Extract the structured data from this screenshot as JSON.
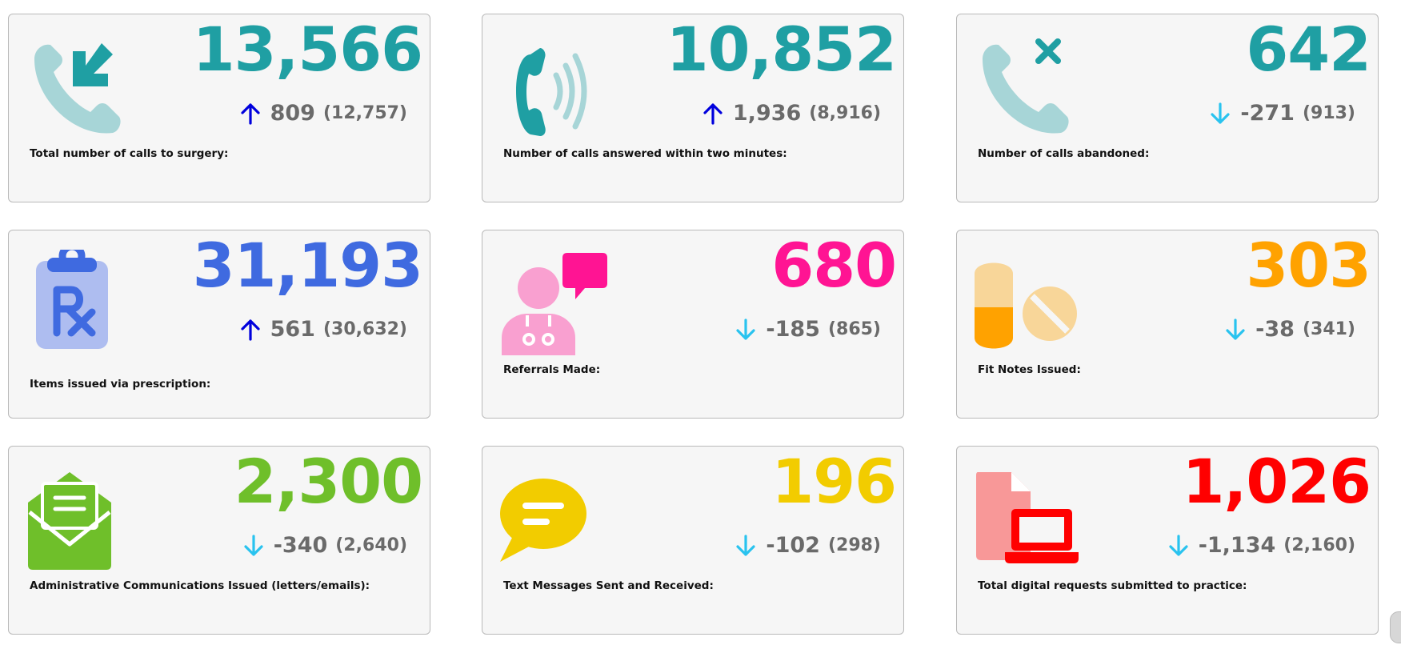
{
  "colors": {
    "teal": "#1f9fa3",
    "teal_light": "#a7d5d7",
    "blue": "#3f6ae0",
    "blue_light": "#aebdf0",
    "pink": "#ff1493",
    "pink_light": "#f9a0d0",
    "orange": "#ffa200",
    "orange_light": "#f8d699",
    "green": "#6fbf2a",
    "yellow": "#f2cc00",
    "red": "#ff0000",
    "red_light": "#f89898",
    "arrow_up": "#0000dd",
    "arrow_down": "#29c3ef",
    "delta_text": "#6a6a6a"
  },
  "cards": [
    {
      "value": "13,566",
      "direction": "up",
      "delta": "809",
      "previous": "(12,757)",
      "label": "Total number of calls to surgery:",
      "icon": "phone-incoming-icon"
    },
    {
      "value": "10,852",
      "direction": "up",
      "delta": "1,936",
      "previous": "(8,916)",
      "label": "Number of calls answered within two minutes:",
      "icon": "phone-ringing-icon"
    },
    {
      "value": "642",
      "direction": "down",
      "delta": "-271",
      "previous": "(913)",
      "label": "Number of calls abandoned:",
      "icon": "phone-missed-icon"
    },
    {
      "value": "31,193",
      "direction": "up",
      "delta": "561",
      "previous": "(30,632)",
      "label": "Items issued via prescription:",
      "icon": "prescription-icon"
    },
    {
      "value": "680",
      "direction": "down",
      "delta": "-185",
      "previous": "(865)",
      "label": "Referrals Made:",
      "icon": "doctor-chat-icon"
    },
    {
      "value": "303",
      "direction": "down",
      "delta": "-38",
      "previous": "(341)",
      "label": "Fit Notes Issued:",
      "icon": "pills-icon"
    },
    {
      "value": "2,300",
      "direction": "down",
      "delta": "-340",
      "previous": "(2,640)",
      "label": "Administrative Communications Issued (letters/emails):",
      "icon": "open-envelope-icon"
    },
    {
      "value": "196",
      "direction": "down",
      "delta": "-102",
      "previous": "(298)",
      "label": "Text Messages Sent and Received:",
      "icon": "speech-bubble-icon"
    },
    {
      "value": "1,026",
      "direction": "down",
      "delta": "-1,134",
      "previous": "(2,160)",
      "label": "Total digital requests submitted to practice:",
      "icon": "digital-request-icon"
    }
  ]
}
